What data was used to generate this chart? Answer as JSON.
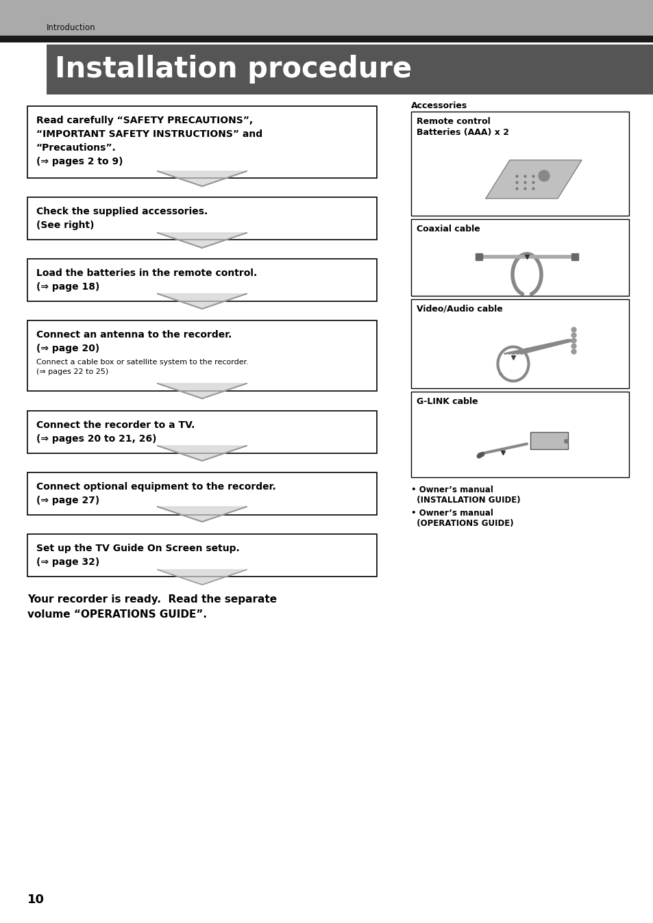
{
  "page_bg": "#ffffff",
  "header_bg": "#aaaaaa",
  "header_dark_bar": "#1a1a1a",
  "title_bar_bg": "#555555",
  "title_text": "Installation procedure",
  "header_label": "Introduction",
  "steps": [
    {
      "main_lines": [
        "Read carefully “SAFETY PRECAUTIONS”,",
        "“IMPORTANT SAFETY INSTRUCTIONS” and",
        "“Precautions”.",
        "(⇒ pages 2 to 9)"
      ],
      "sub_lines": []
    },
    {
      "main_lines": [
        "Check the supplied accessories.",
        "(See right)"
      ],
      "sub_lines": []
    },
    {
      "main_lines": [
        "Load the batteries in the remote control.",
        "(⇒ page 18)"
      ],
      "sub_lines": []
    },
    {
      "main_lines": [
        "Connect an antenna to the recorder.",
        "(⇒ page 20)"
      ],
      "sub_lines": [
        "Connect a cable box or satellite system to the recorder.",
        "(⇒ pages 22 to 25)"
      ]
    },
    {
      "main_lines": [
        "Connect the recorder to a TV.",
        "(⇒ pages 20 to 21, 26)"
      ],
      "sub_lines": []
    },
    {
      "main_lines": [
        "Connect optional equipment to the recorder.",
        "(⇒ page 27)"
      ],
      "sub_lines": []
    },
    {
      "main_lines": [
        "Set up the TV Guide On Screen setup.",
        "(⇒ page 32)"
      ],
      "sub_lines": []
    }
  ],
  "accessories_label": "Accessories",
  "accessories": [
    "Remote control\nBatteries (AAA) x 2",
    "Coaxial cable",
    "Video/Audio cable",
    "G-LINK cable"
  ],
  "bullet_notes": [
    "• Owner’s manual\n  (INSTALLATION GUIDE)",
    "• Owner’s manual\n  (OPERATIONS GUIDE)"
  ],
  "footer_main": "Your recorder is ready.  Read the separate",
  "footer_sub": "volume “OPERATIONS GUIDE”.",
  "page_number": "10"
}
